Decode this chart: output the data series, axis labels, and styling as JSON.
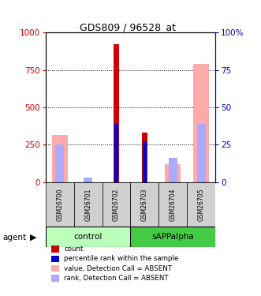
{
  "title": "GDS809 / 96528_at",
  "samples": [
    "GSM26700",
    "GSM26701",
    "GSM26702",
    "GSM26703",
    "GSM26704",
    "GSM26705"
  ],
  "ylim_left": [
    0,
    1000
  ],
  "ylim_right": [
    0,
    100
  ],
  "yticks_left": [
    0,
    250,
    500,
    750,
    1000
  ],
  "yticks_right": [
    0,
    25,
    50,
    75,
    100
  ],
  "count_values": [
    0,
    0,
    920,
    330,
    0,
    0
  ],
  "rank_values": [
    0,
    0,
    39,
    27,
    0,
    0
  ],
  "absent_value_values": [
    315,
    0,
    0,
    0,
    120,
    790
  ],
  "absent_rank_values": [
    25,
    3,
    0,
    0,
    16,
    39
  ],
  "count_color": "#cc0000",
  "rank_color": "#0000cc",
  "absent_value_color": "#ffaaaa",
  "absent_rank_color": "#aaaaff",
  "left_tick_color": "#cc0000",
  "right_tick_color": "#0000bb",
  "group_ctrl_color": "#bbffbb",
  "group_sapp_color": "#44cc44",
  "sample_box_color": "#d0d0d0"
}
